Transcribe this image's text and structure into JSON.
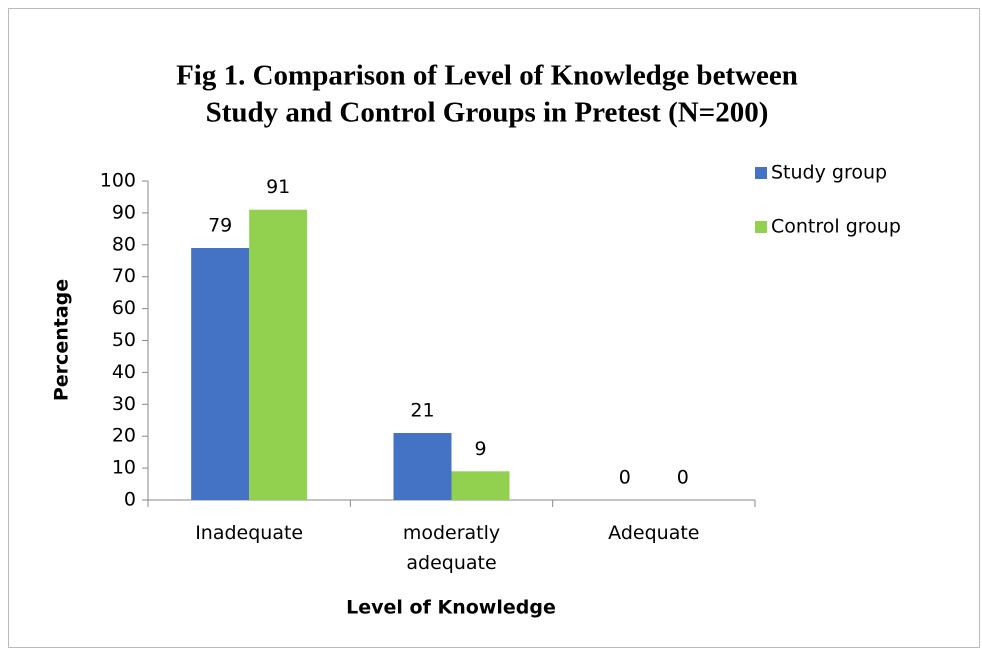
{
  "chart_data": {
    "type": "bar",
    "title": [
      "Fig 1. Comparison of Level of Knowledge between",
      "Study and Control Groups in Pretest (N=200)"
    ],
    "categories": [
      "Inadequate",
      "moderatly adequate",
      "Adequate"
    ],
    "series": [
      {
        "name": "Study group",
        "color": "#4472c4",
        "values": [
          79,
          21,
          0
        ]
      },
      {
        "name": "Control group",
        "color": "#92d050",
        "values": [
          91,
          9,
          0
        ]
      }
    ],
    "ylim": [
      0,
      100
    ],
    "yticks": [
      0,
      10,
      20,
      30,
      40,
      50,
      60,
      70,
      80,
      90,
      100
    ],
    "xlabel": "Level of Knowledge",
    "ylabel": "Percentage",
    "grid": false,
    "legend": "right"
  }
}
